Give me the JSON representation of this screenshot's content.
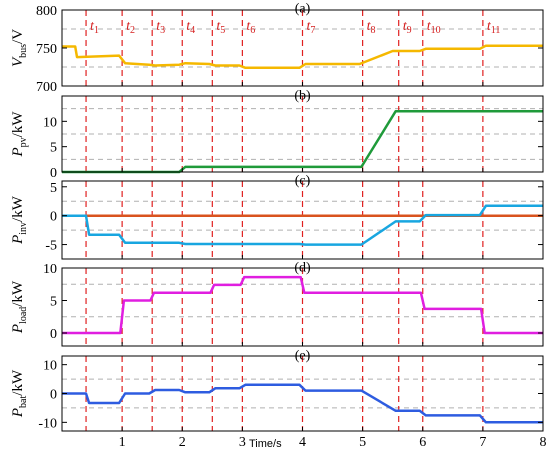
{
  "colors": {
    "vbus": "#f5b800",
    "pv": "#1f9a3a",
    "inv_blue": "#18a6e0",
    "inv_red": "#d9531e",
    "load": "#e01ee0",
    "bat": "#2e5ce0",
    "event_line": "#e02020",
    "grid_line": "#b0b0b0"
  },
  "chart_data": {
    "type": "line",
    "xlabel": "Time/s",
    "x_ticks": [
      1,
      2,
      3,
      4,
      5,
      6,
      7,
      8
    ],
    "xlim": [
      0,
      8
    ],
    "events": [
      {
        "t": 0.4,
        "base": "t",
        "sub": "1"
      },
      {
        "t": 1.0,
        "base": "t",
        "sub": "2"
      },
      {
        "t": 1.5,
        "base": "t",
        "sub": "3"
      },
      {
        "t": 2.0,
        "base": "t",
        "sub": "4"
      },
      {
        "t": 2.5,
        "base": "t",
        "sub": "5"
      },
      {
        "t": 3.0,
        "base": "t",
        "sub": "6"
      },
      {
        "t": 4.0,
        "base": "t",
        "sub": "7"
      },
      {
        "t": 5.0,
        "base": "t",
        "sub": "8"
      },
      {
        "t": 5.6,
        "base": "t",
        "sub": "9"
      },
      {
        "t": 6.0,
        "base": "t",
        "sub": "10"
      },
      {
        "t": 7.0,
        "base": "t",
        "sub": "11"
      }
    ],
    "panels": [
      {
        "id": "a",
        "label": "(a)",
        "ylabel": "V",
        "ylabel_sub": "bus",
        "ylabel_unit": "/V",
        "ylim": [
          700,
          800
        ],
        "yticks": [
          700,
          750,
          800
        ],
        "grid": [
          725,
          775
        ],
        "series": [
          {
            "color_key": "vbus",
            "points": [
              [
                0,
                752
              ],
              [
                0.22,
                752
              ],
              [
                0.25,
                738
              ],
              [
                0.95,
                740
              ],
              [
                1.05,
                730
              ],
              [
                1.45,
                728
              ],
              [
                1.55,
                727
              ],
              [
                1.95,
                728
              ],
              [
                2.05,
                730
              ],
              [
                2.45,
                729
              ],
              [
                2.55,
                727
              ],
              [
                2.95,
                727
              ],
              [
                3.05,
                724
              ],
              [
                3.95,
                724
              ],
              [
                4.05,
                729
              ],
              [
                4.95,
                729
              ],
              [
                5.5,
                746
              ],
              [
                5.6,
                746
              ],
              [
                5.95,
                746
              ],
              [
                6.05,
                749
              ],
              [
                6.95,
                749
              ],
              [
                7.05,
                753
              ],
              [
                8,
                753
              ]
            ]
          }
        ]
      },
      {
        "id": "b",
        "label": "(b)",
        "ylabel": "P",
        "ylabel_sub": "pv",
        "ylabel_unit": "/kW",
        "ylim": [
          0,
          15
        ],
        "yticks": [
          0,
          5,
          10
        ],
        "grid": [
          2.5,
          7.5,
          12.5
        ],
        "series": [
          {
            "color_key": "pv",
            "points": [
              [
                0,
                0
              ],
              [
                1.95,
                0
              ],
              [
                2.05,
                1
              ],
              [
                4.98,
                1
              ],
              [
                5.55,
                12
              ],
              [
                8,
                12
              ]
            ]
          }
        ]
      },
      {
        "id": "c",
        "label": "(c)",
        "ylabel": "P",
        "ylabel_sub": "inv",
        "ylabel_unit": "/kW",
        "ylim": [
          -7.5,
          6
        ],
        "yticks": [
          -5,
          0,
          5
        ],
        "grid": [
          -2.5,
          2.5
        ],
        "series": [
          {
            "color_key": "inv_red",
            "points": [
              [
                0,
                0
              ],
              [
                8,
                0
              ]
            ]
          },
          {
            "color_key": "inv_blue",
            "points": [
              [
                0,
                0
              ],
              [
                0.4,
                0
              ],
              [
                0.45,
                -3.3
              ],
              [
                0.95,
                -3.3
              ],
              [
                1.05,
                -4.7
              ],
              [
                1.95,
                -4.7
              ],
              [
                2.05,
                -4.9
              ],
              [
                3.95,
                -4.9
              ],
              [
                4.05,
                -5.0
              ],
              [
                4.98,
                -5.0
              ],
              [
                5.55,
                -1.0
              ],
              [
                5.95,
                -1.0
              ],
              [
                6.05,
                0.1
              ],
              [
                6.95,
                0.1
              ],
              [
                7.05,
                1.7
              ],
              [
                8,
                1.7
              ]
            ]
          }
        ]
      },
      {
        "id": "d",
        "label": "(d)",
        "ylabel": "P",
        "ylabel_sub": "load",
        "ylabel_unit": "/kW",
        "ylim": [
          -2,
          10
        ],
        "yticks": [
          0,
          5,
          10
        ],
        "grid": [
          2.5,
          7.5
        ],
        "series": [
          {
            "color_key": "load",
            "points": [
              [
                0,
                0
              ],
              [
                0.97,
                0
              ],
              [
                1.03,
                5
              ],
              [
                1.47,
                5
              ],
              [
                1.53,
                6.2
              ],
              [
                2.47,
                6.2
              ],
              [
                2.53,
                7.4
              ],
              [
                2.97,
                7.4
              ],
              [
                3.03,
                8.6
              ],
              [
                3.97,
                8.6
              ],
              [
                4.03,
                6.2
              ],
              [
                5.97,
                6.2
              ],
              [
                6.03,
                3.7
              ],
              [
                6.97,
                3.7
              ],
              [
                7.03,
                0
              ],
              [
                8,
                0
              ]
            ]
          }
        ]
      },
      {
        "id": "e",
        "label": "(e)",
        "ylabel": "P",
        "ylabel_sub": "bat",
        "ylabel_unit": "/kW",
        "ylim": [
          -13,
          13
        ],
        "yticks": [
          -10,
          0,
          10
        ],
        "grid": [
          -5,
          5
        ],
        "series": [
          {
            "color_key": "bat",
            "points": [
              [
                0,
                0
              ],
              [
                0.4,
                0
              ],
              [
                0.45,
                -3.3
              ],
              [
                0.95,
                -3.3
              ],
              [
                1.05,
                0
              ],
              [
                1.45,
                0
              ],
              [
                1.55,
                1.2
              ],
              [
                1.95,
                1.2
              ],
              [
                2.05,
                0.4
              ],
              [
                2.45,
                0.4
              ],
              [
                2.55,
                1.8
              ],
              [
                2.95,
                1.8
              ],
              [
                3.05,
                3
              ],
              [
                3.95,
                3
              ],
              [
                4.05,
                1
              ],
              [
                4.98,
                1
              ],
              [
                5.55,
                -6
              ],
              [
                5.95,
                -6
              ],
              [
                6.05,
                -7.6
              ],
              [
                6.95,
                -7.6
              ],
              [
                7.05,
                -10
              ],
              [
                8,
                -10
              ]
            ]
          }
        ]
      }
    ]
  }
}
